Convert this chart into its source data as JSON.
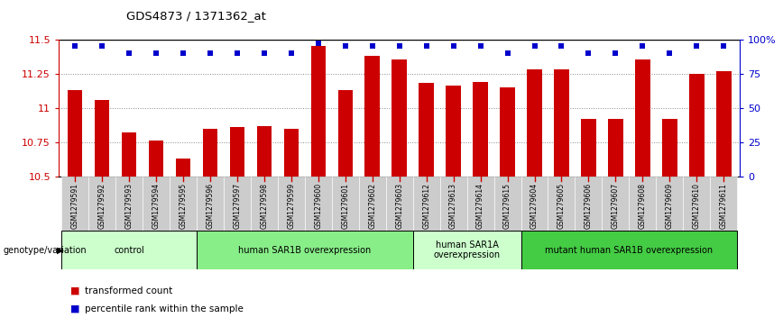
{
  "title": "GDS4873 / 1371362_at",
  "samples": [
    "GSM1279591",
    "GSM1279592",
    "GSM1279593",
    "GSM1279594",
    "GSM1279595",
    "GSM1279596",
    "GSM1279597",
    "GSM1279598",
    "GSM1279599",
    "GSM1279600",
    "GSM1279601",
    "GSM1279602",
    "GSM1279603",
    "GSM1279612",
    "GSM1279613",
    "GSM1279614",
    "GSM1279615",
    "GSM1279604",
    "GSM1279605",
    "GSM1279606",
    "GSM1279607",
    "GSM1279608",
    "GSM1279609",
    "GSM1279610",
    "GSM1279611"
  ],
  "bar_values": [
    11.13,
    11.06,
    10.82,
    10.76,
    10.63,
    10.85,
    10.86,
    10.87,
    10.85,
    11.45,
    11.13,
    11.38,
    11.35,
    11.18,
    11.16,
    11.19,
    11.15,
    11.28,
    11.28,
    10.92,
    10.92,
    11.35,
    10.92,
    11.25,
    11.27
  ],
  "percentile_values": [
    95,
    95,
    90,
    90,
    90,
    90,
    90,
    90,
    90,
    97,
    95,
    95,
    95,
    95,
    95,
    95,
    90,
    95,
    95,
    90,
    90,
    95,
    90,
    95,
    95
  ],
  "ylim_left": [
    10.5,
    11.5
  ],
  "ylim_right": [
    0,
    100
  ],
  "yticks_left": [
    10.5,
    10.75,
    11.0,
    11.25,
    11.5
  ],
  "ytick_labels_left": [
    "10.5",
    "10.75",
    "11",
    "11.25",
    "11.5"
  ],
  "yticks_right": [
    0,
    25,
    50,
    75,
    100
  ],
  "ytick_labels_right": [
    "0",
    "25",
    "50",
    "75",
    "100%"
  ],
  "bar_color": "#cc0000",
  "percentile_color": "#0000cc",
  "bar_base": 10.5,
  "groups": [
    {
      "label": "control",
      "start": 0,
      "end": 4,
      "color": "#ccffcc"
    },
    {
      "label": "human SAR1B overexpression",
      "start": 5,
      "end": 12,
      "color": "#88ee88"
    },
    {
      "label": "human SAR1A\noverexpression",
      "start": 13,
      "end": 16,
      "color": "#ccffcc"
    },
    {
      "label": "mutant human SAR1B overexpression",
      "start": 17,
      "end": 24,
      "color": "#44cc44"
    }
  ],
  "genotype_label": "genotype/variation",
  "legend_items": [
    {
      "color": "#cc0000",
      "label": "transformed count"
    },
    {
      "color": "#0000cc",
      "label": "percentile rank within the sample"
    }
  ],
  "dotted_line_color": "#888888",
  "top_line_color": "#000000",
  "bg_color": "#ffffff",
  "tick_bg_color": "#cccccc"
}
